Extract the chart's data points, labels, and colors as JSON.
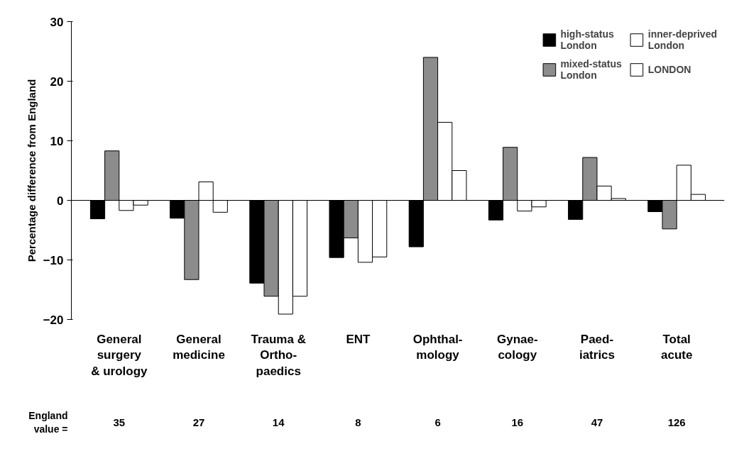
{
  "chart_data": {
    "type": "bar",
    "ylabel": "Percentage difference from England",
    "categories": [
      "General\nsurgery\n& urology",
      "General\nmedicine",
      "Trauma &\nOrtho-\npaedics",
      "ENT",
      "Ophthal-\nmology",
      "Gynae-\ncology",
      "Paed-\niatrics",
      "Total\nacute"
    ],
    "series": [
      {
        "name": "high-status\nLondon",
        "color": "#000000",
        "values": [
          -3.1,
          -3,
          -13.9,
          -9.6,
          -7.8,
          -3.3,
          -3.2,
          -1.9
        ]
      },
      {
        "name": "mixed-status\nLondon",
        "color": "#8c8c8c",
        "values": [
          8.3,
          -13.3,
          -16.1,
          -6.3,
          24,
          8.9,
          7.2,
          -4.8
        ]
      },
      {
        "name": "inner-deprived\nLondon",
        "color": "#ffffff",
        "values": [
          -1.7,
          3.1,
          -19.1,
          -10.4,
          13.1,
          -1.8,
          2.4,
          5.9
        ]
      },
      {
        "name": "LONDON",
        "color": "#ffffff",
        "values": [
          -0.8,
          -2,
          -16.1,
          -9.5,
          5,
          -1.1,
          0.3,
          1
        ]
      }
    ],
    "ylim": [
      -20,
      30
    ],
    "yticks": [
      -20,
      -10,
      0,
      10,
      20,
      30
    ],
    "grid": false,
    "ref_lines": [
      {
        "axis": "y",
        "value": 0,
        "color": "#000000"
      }
    ],
    "legend": "top right",
    "annotations": [
      "England\nvalue =",
      "35",
      "27",
      "14",
      "8",
      "6",
      "16",
      "47",
      "126"
    ]
  }
}
